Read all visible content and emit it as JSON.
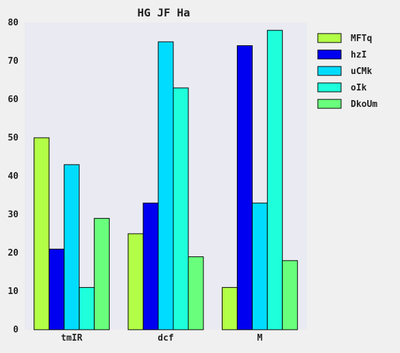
{
  "chart_data": {
    "type": "bar",
    "title": "HG JF Ha",
    "xlabel": "",
    "ylabel": "",
    "categories": [
      "tmIR",
      "dcf",
      "M"
    ],
    "series": [
      {
        "name": "MFTq",
        "color": "#b3ff47",
        "values": [
          50,
          25,
          11
        ]
      },
      {
        "name": "hzI",
        "color": "#0000f0",
        "values": [
          21,
          33,
          74
        ]
      },
      {
        "name": "uCMk",
        "color": "#00dcff",
        "values": [
          43,
          75,
          33
        ]
      },
      {
        "name": "oIk",
        "color": "#1effdc",
        "values": [
          11,
          63,
          78
        ]
      },
      {
        "name": "DkoUm",
        "color": "#69ff7d",
        "values": [
          29,
          19,
          18
        ]
      }
    ],
    "ylim": [
      0,
      80
    ],
    "yticks": [
      0,
      10,
      20,
      30,
      40,
      50,
      60,
      70,
      80
    ],
    "grid": false,
    "legend_position": "right"
  },
  "colors": {
    "plot_background": "#eaeaf2",
    "page_background": "#f0f0f0",
    "bar_edge": "#000000"
  }
}
